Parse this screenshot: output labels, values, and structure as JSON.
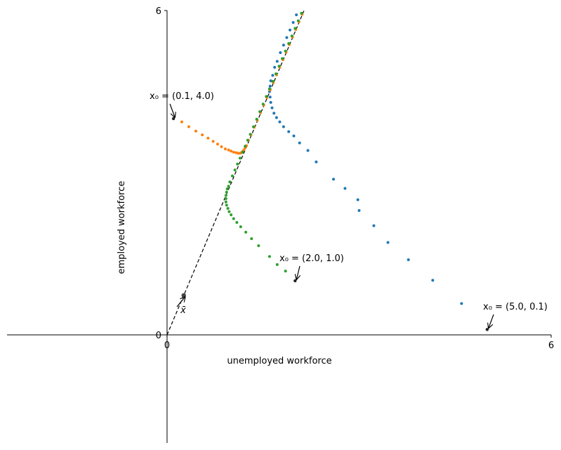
{
  "chart_data": {
    "type": "scatter",
    "xlabel": "unemployed workforce",
    "ylabel": "employed workforce",
    "xlim": [
      -2.5,
      6
    ],
    "ylim": [
      -2,
      6
    ],
    "x_ticks": [
      {
        "value": 0,
        "label": "0"
      },
      {
        "value": 6,
        "label": "6"
      }
    ],
    "y_ticks": [
      {
        "value": 0,
        "label": "0"
      },
      {
        "value": 6,
        "label": "6"
      }
    ],
    "grid": false,
    "reference_line": {
      "style": "dashed",
      "color": "#000000",
      "from": [
        0,
        0
      ],
      "to": [
        2.14,
        6.0
      ]
    },
    "steady_state": {
      "x": 0.26,
      "y": 0.73,
      "label": "x̄",
      "color": "#444444"
    },
    "series": [
      {
        "color": "#1f77b4",
        "start_label": "x₀ = (5.0, 0.1)",
        "points": [
          [
            5.0,
            0.1
          ],
          [
            4.6,
            0.58
          ],
          [
            4.15,
            1.01
          ],
          [
            3.77,
            1.39
          ],
          [
            3.45,
            1.71
          ],
          [
            3.23,
            2.02
          ],
          [
            3.0,
            2.3
          ],
          [
            2.98,
            2.5
          ],
          [
            2.78,
            2.71
          ],
          [
            2.6,
            2.88
          ],
          [
            2.33,
            3.2
          ],
          [
            2.2,
            3.41
          ],
          [
            2.07,
            3.55
          ],
          [
            1.98,
            3.68
          ],
          [
            1.9,
            3.76
          ],
          [
            1.82,
            3.85
          ],
          [
            1.76,
            3.94
          ],
          [
            1.71,
            4.02
          ],
          [
            1.67,
            4.1
          ],
          [
            1.64,
            4.2
          ],
          [
            1.62,
            4.3
          ],
          [
            1.61,
            4.4
          ],
          [
            1.6,
            4.5
          ],
          [
            1.61,
            4.6
          ],
          [
            1.62,
            4.7
          ],
          [
            1.65,
            4.8
          ],
          [
            1.68,
            4.95
          ],
          [
            1.72,
            5.06
          ],
          [
            1.77,
            5.22
          ],
          [
            1.82,
            5.36
          ],
          [
            1.87,
            5.5
          ],
          [
            1.92,
            5.64
          ],
          [
            1.97,
            5.78
          ],
          [
            2.02,
            5.92
          ]
        ]
      },
      {
        "color": "#ff7f0e",
        "start_label": "x₀ = (0.1, 4.0)",
        "points": [
          [
            0.1,
            4.0
          ],
          [
            0.23,
            3.94
          ],
          [
            0.34,
            3.85
          ],
          [
            0.45,
            3.77
          ],
          [
            0.55,
            3.7
          ],
          [
            0.64,
            3.64
          ],
          [
            0.72,
            3.58
          ],
          [
            0.79,
            3.53
          ],
          [
            0.85,
            3.48
          ],
          [
            0.91,
            3.44
          ],
          [
            0.96,
            3.42
          ],
          [
            1.0,
            3.4
          ],
          [
            1.04,
            3.38
          ],
          [
            1.08,
            3.37
          ],
          [
            1.11,
            3.36
          ],
          [
            1.14,
            3.36
          ],
          [
            1.16,
            3.37
          ],
          [
            1.18,
            3.39
          ],
          [
            1.2,
            3.42
          ],
          [
            1.22,
            3.46
          ],
          [
            1.24,
            3.5
          ],
          [
            1.27,
            3.6
          ],
          [
            1.31,
            3.7
          ],
          [
            1.36,
            3.84
          ],
          [
            1.41,
            3.97
          ],
          [
            1.46,
            4.11
          ],
          [
            1.51,
            4.25
          ],
          [
            1.56,
            4.39
          ],
          [
            1.61,
            4.53
          ],
          [
            1.66,
            4.67
          ],
          [
            1.71,
            4.81
          ],
          [
            1.76,
            4.95
          ],
          [
            1.81,
            5.09
          ],
          [
            1.86,
            5.23
          ],
          [
            1.91,
            5.37
          ],
          [
            1.96,
            5.51
          ],
          [
            2.01,
            5.65
          ],
          [
            2.06,
            5.79
          ],
          [
            2.11,
            5.93
          ]
        ]
      },
      {
        "color": "#2ca02c",
        "start_label": "x₀ = (2.0, 1.0)",
        "points": [
          [
            2.0,
            1.0
          ],
          [
            1.85,
            1.18
          ],
          [
            1.72,
            1.3
          ],
          [
            1.6,
            1.45
          ],
          [
            1.43,
            1.65
          ],
          [
            1.32,
            1.78
          ],
          [
            1.23,
            1.9
          ],
          [
            1.15,
            2.0
          ],
          [
            1.09,
            2.08
          ],
          [
            1.04,
            2.15
          ],
          [
            1.0,
            2.22
          ],
          [
            0.97,
            2.28
          ],
          [
            0.95,
            2.34
          ],
          [
            0.93,
            2.4
          ],
          [
            0.92,
            2.46
          ],
          [
            0.92,
            2.52
          ],
          [
            0.92,
            2.58
          ],
          [
            0.93,
            2.64
          ],
          [
            0.94,
            2.7
          ],
          [
            0.96,
            2.75
          ],
          [
            0.98,
            2.83
          ],
          [
            1.02,
            2.94
          ],
          [
            1.06,
            3.05
          ],
          [
            1.1,
            3.16
          ],
          [
            1.14,
            3.27
          ],
          [
            1.18,
            3.38
          ],
          [
            1.22,
            3.49
          ],
          [
            1.26,
            3.6
          ],
          [
            1.3,
            3.71
          ],
          [
            1.35,
            3.85
          ],
          [
            1.4,
            3.99
          ],
          [
            1.45,
            4.13
          ],
          [
            1.5,
            4.27
          ],
          [
            1.55,
            4.41
          ],
          [
            1.6,
            4.55
          ],
          [
            1.65,
            4.69
          ],
          [
            1.7,
            4.83
          ],
          [
            1.75,
            4.97
          ],
          [
            1.8,
            5.11
          ],
          [
            1.85,
            5.25
          ],
          [
            1.9,
            5.39
          ],
          [
            1.95,
            5.53
          ],
          [
            2.0,
            5.67
          ],
          [
            2.05,
            5.81
          ],
          [
            2.1,
            5.95
          ]
        ]
      }
    ]
  }
}
